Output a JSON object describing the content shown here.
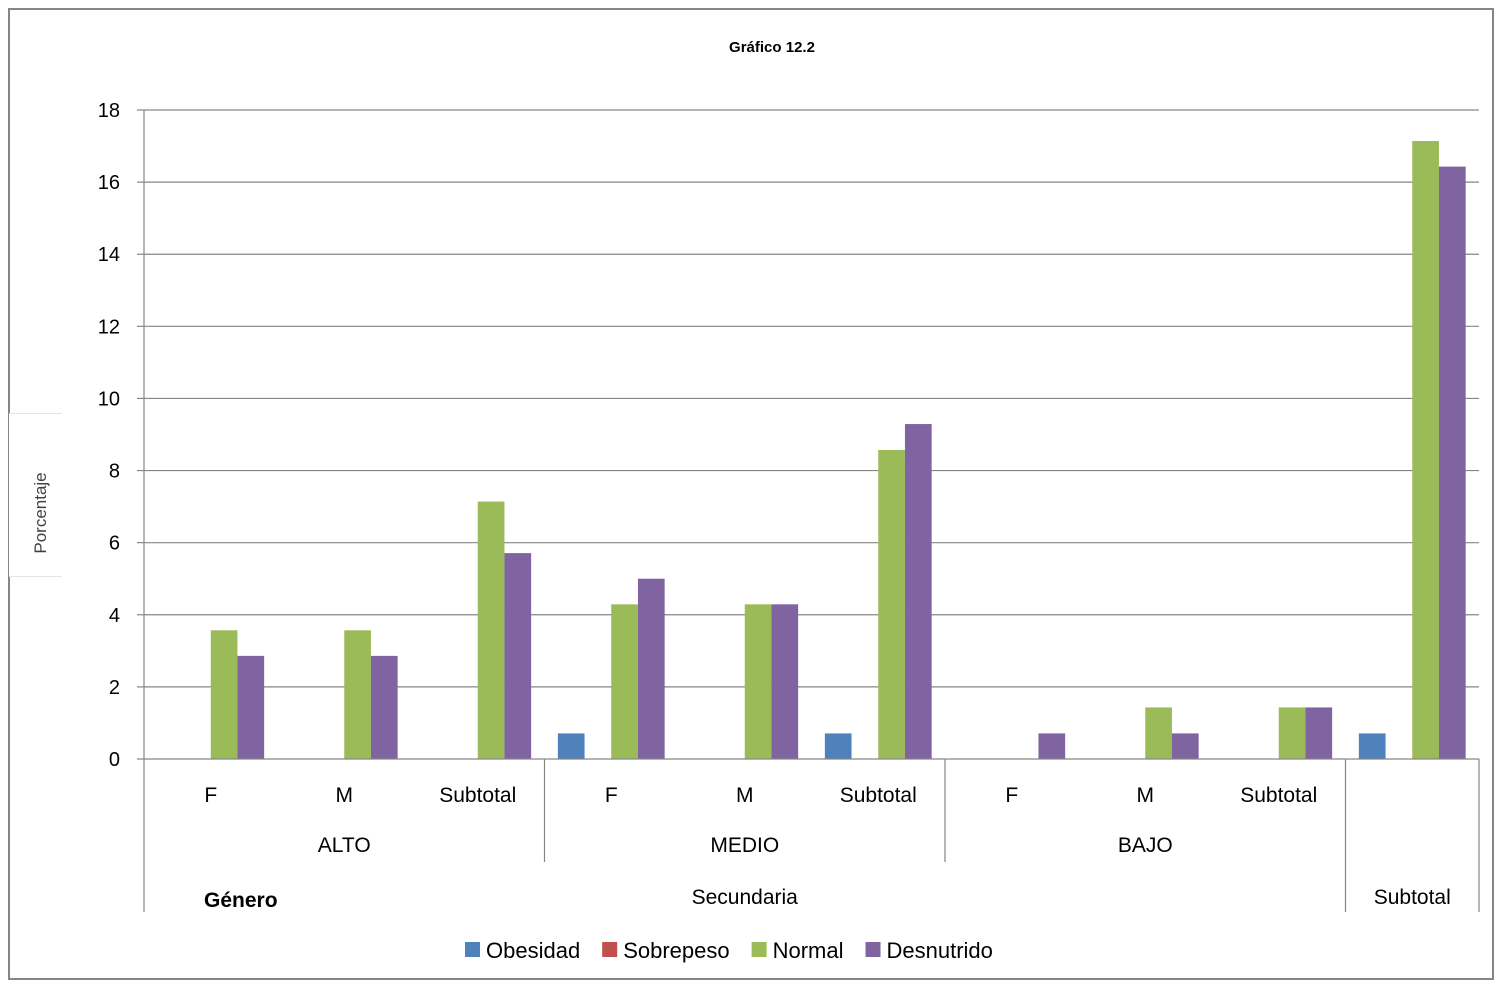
{
  "chart_data": {
    "type": "bar",
    "title": "Gráfico 12.2",
    "ylabel": "Porcentaje",
    "xlabel_row_header": "Género",
    "ylim": [
      0,
      18
    ],
    "yticks": [
      0,
      2,
      4,
      6,
      8,
      10,
      12,
      14,
      16,
      18
    ],
    "grid": true,
    "legend_position": "bottom",
    "categories": [
      "F",
      "M",
      "Subtotal",
      "F",
      "M",
      "Subtotal",
      "F",
      "M",
      "Subtotal",
      ""
    ],
    "groups_level2": [
      {
        "label": "ALTO",
        "span": 3
      },
      {
        "label": "MEDIO",
        "span": 3
      },
      {
        "label": "BAJO",
        "span": 3
      },
      {
        "label": "",
        "span": 1
      }
    ],
    "groups_level3": [
      {
        "label": "Secundaria",
        "span": 9
      },
      {
        "label": "Subtotal",
        "span": 1
      }
    ],
    "series": [
      {
        "name": "Obesidad",
        "color": "#4f81bd",
        "values": [
          0,
          0,
          0,
          0.71,
          0,
          0.71,
          0,
          0,
          0,
          0.71
        ]
      },
      {
        "name": "Sobrepeso",
        "color": "#c0504d",
        "values": [
          0,
          0,
          0,
          0,
          0,
          0,
          0,
          0,
          0,
          0
        ]
      },
      {
        "name": "Normal",
        "color": "#9bbb59",
        "values": [
          3.57,
          3.57,
          7.14,
          4.29,
          4.29,
          8.57,
          0,
          1.43,
          1.43,
          17.14
        ]
      },
      {
        "name": "Desnutrido",
        "color": "#8064a2",
        "values": [
          2.86,
          2.86,
          5.71,
          5.0,
          4.29,
          9.29,
          0.71,
          0.71,
          1.43,
          16.43
        ]
      }
    ]
  }
}
